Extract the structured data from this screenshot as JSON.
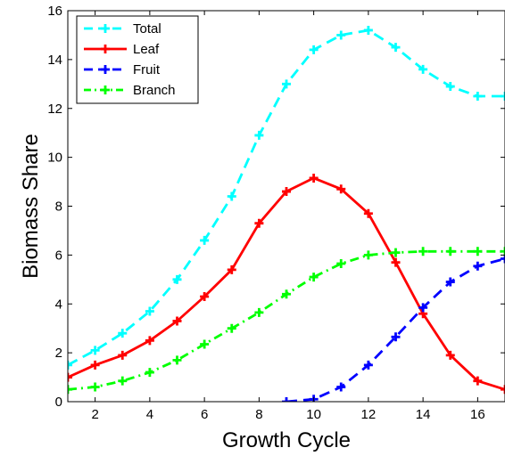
{
  "chart_data": {
    "type": "line",
    "xlabel": "Growth Cycle",
    "ylabel": "Biomass Share",
    "xlim": [
      1,
      17
    ],
    "ylim": [
      0,
      16
    ],
    "xticks": [
      2,
      4,
      6,
      8,
      10,
      12,
      14,
      16
    ],
    "yticks": [
      0,
      2,
      4,
      6,
      8,
      10,
      12,
      14,
      16
    ],
    "grid": false,
    "legend_position": "top-left",
    "series": [
      {
        "name": "Total",
        "color": "#00ffff",
        "line_style": "dashed",
        "marker": "plus",
        "x": [
          1,
          2,
          3,
          4,
          5,
          6,
          7,
          8,
          9,
          10,
          11,
          12,
          13,
          14,
          15,
          16,
          17
        ],
        "y": [
          1.5,
          2.1,
          2.8,
          3.7,
          5.0,
          6.6,
          8.4,
          10.9,
          13.0,
          14.4,
          15.0,
          15.2,
          14.5,
          13.6,
          12.9,
          12.5,
          12.5
        ]
      },
      {
        "name": "Leaf",
        "color": "#ff0000",
        "line_style": "solid",
        "marker": "plus",
        "x": [
          1,
          2,
          3,
          4,
          5,
          6,
          7,
          8,
          9,
          10,
          11,
          12,
          13,
          14,
          15,
          16,
          17
        ],
        "y": [
          1.0,
          1.5,
          1.9,
          2.5,
          3.3,
          4.3,
          5.4,
          7.3,
          8.6,
          9.15,
          8.7,
          7.7,
          5.7,
          3.6,
          1.9,
          0.85,
          0.5
        ]
      },
      {
        "name": "Fruit",
        "color": "#0000ff",
        "line_style": "dashed",
        "marker": "plus",
        "x": [
          9,
          10,
          11,
          12,
          13,
          14,
          15,
          16,
          17
        ],
        "y": [
          0.0,
          0.1,
          0.6,
          1.5,
          2.65,
          3.85,
          4.9,
          5.55,
          5.85
        ]
      },
      {
        "name": "Branch",
        "color": "#00ff00",
        "line_style": "dashdot",
        "marker": "plus",
        "x": [
          1,
          2,
          3,
          4,
          5,
          6,
          7,
          8,
          9,
          10,
          11,
          12,
          13,
          14,
          15,
          16,
          17
        ],
        "y": [
          0.5,
          0.6,
          0.85,
          1.2,
          1.7,
          2.35,
          3.0,
          3.65,
          4.4,
          5.1,
          5.65,
          6.0,
          6.1,
          6.15,
          6.15,
          6.15,
          6.15
        ]
      }
    ]
  }
}
